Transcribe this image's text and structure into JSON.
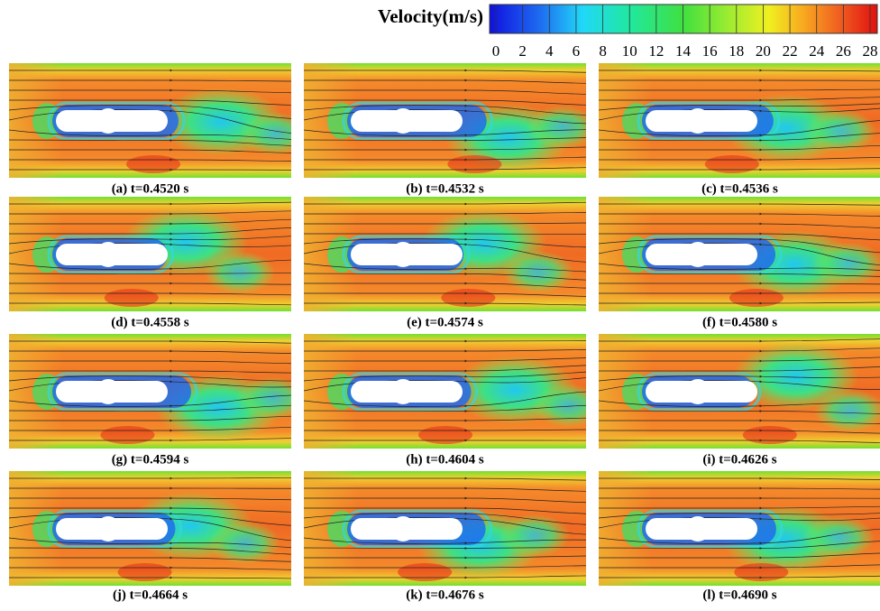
{
  "colorbar": {
    "title": "Velocity(m/s)",
    "ticks": [
      0,
      2,
      4,
      6,
      8,
      10,
      12,
      14,
      16,
      18,
      20,
      22,
      24,
      26,
      28
    ]
  },
  "panels": [
    {
      "caption": "(a) t=0.4520 s"
    },
    {
      "caption": "(b) t=0.4532 s"
    },
    {
      "caption": "(c) t=0.4536 s"
    },
    {
      "caption": "(d) t=0.4558 s"
    },
    {
      "caption": "(e) t=0.4574 s"
    },
    {
      "caption": "(f) t=0.4580 s"
    },
    {
      "caption": "(g) t=0.4594 s"
    },
    {
      "caption": "(h) t=0.4604 s"
    },
    {
      "caption": "(i) t=0.4626 s"
    },
    {
      "caption": "(j) t=0.4664 s"
    },
    {
      "caption": "(k) t=0.4676 s"
    },
    {
      "caption": "(l) t=0.4690 s"
    }
  ]
}
